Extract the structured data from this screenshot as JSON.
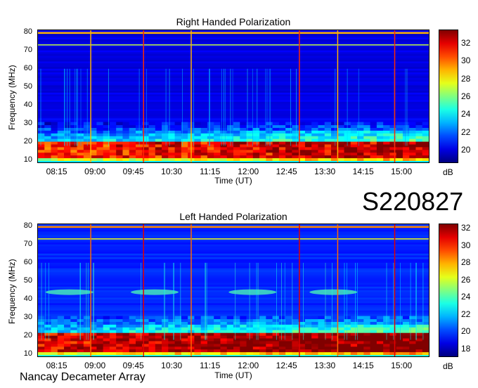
{
  "stamp": "S220827",
  "footer": "Nancay Decameter Array",
  "chart_data": [
    {
      "type": "heatmap",
      "title": "Right Handed Polarization",
      "xlabel": "Time (UT)",
      "ylabel": "Frequency (MHz)",
      "x_ticks": [
        "08:15",
        "09:00",
        "09:45",
        "10:30",
        "11:15",
        "12:00",
        "12:45",
        "13:30",
        "14:15",
        "15:00"
      ],
      "y_ticks": [
        10,
        20,
        30,
        40,
        50,
        60,
        70,
        80
      ],
      "ylim": [
        9,
        81
      ],
      "colorbar": {
        "label": "dB",
        "ticks": [
          20,
          22,
          24,
          26,
          28,
          30,
          32
        ],
        "range": [
          18.5,
          33.5
        ],
        "colormap": "jet"
      },
      "features": {
        "background_db": 20,
        "strong_band_mhz": [
          11,
          20
        ],
        "strong_band_db": 31,
        "rfi_lines_mhz": [
          73,
          79.5
        ],
        "vertical_events_ut": [
          "08:55",
          "09:57",
          "10:53",
          "13:00",
          "13:45",
          "14:52"
        ]
      }
    },
    {
      "type": "heatmap",
      "title": "Left Handed Polarization",
      "xlabel": "Time (UT)",
      "ylabel": "Frequency (MHz)",
      "x_ticks": [
        "08:15",
        "09:00",
        "09:45",
        "10:30",
        "11:15",
        "12:00",
        "12:45",
        "13:30",
        "14:15",
        "15:00"
      ],
      "y_ticks": [
        10,
        20,
        30,
        40,
        50,
        60,
        70,
        80
      ],
      "ylim": [
        9,
        81
      ],
      "colorbar": {
        "label": "dB",
        "ticks": [
          18,
          20,
          22,
          24,
          26,
          28,
          30,
          32
        ],
        "range": [
          17,
          32.5
        ],
        "colormap": "jet"
      },
      "features": {
        "background_db": 19.5,
        "strong_band_mhz": [
          11,
          21
        ],
        "strong_band_db": 31,
        "rfi_lines_mhz": [
          73,
          79.5
        ],
        "diffuse_patches_mhz": 44,
        "vertical_events_ut": [
          "08:55",
          "09:57",
          "10:53",
          "13:00",
          "13:45",
          "14:52"
        ]
      }
    }
  ]
}
